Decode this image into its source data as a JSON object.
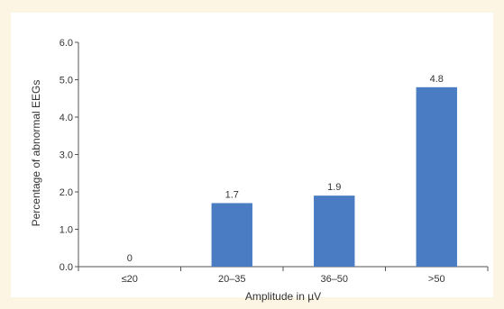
{
  "colors": {
    "bar": "#4a7cc4",
    "axis": "#555555",
    "background": "#fdf5e4"
  },
  "chart_data": {
    "type": "bar",
    "categories": [
      "≤20",
      "20–35",
      "36–50",
      ">50"
    ],
    "values": [
      0,
      1.7,
      1.9,
      4.8
    ],
    "value_labels": [
      "0",
      "1.7",
      "1.9",
      "4.8"
    ],
    "xlabel": "Amplitude in µV",
    "ylabel": "Percentage of abnormal EEGs",
    "ylim": [
      0,
      6
    ],
    "yticks": [
      "0.0",
      "1.0",
      "2.0",
      "3.0",
      "4.0",
      "5.0",
      "6.0"
    ],
    "yticks_values": [
      0,
      1,
      2,
      3,
      4,
      5,
      6
    ],
    "grid": false,
    "legend": "none"
  }
}
